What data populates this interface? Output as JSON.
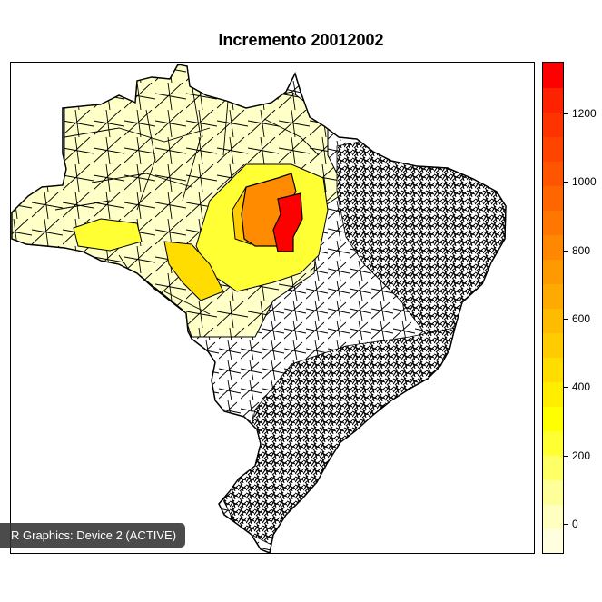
{
  "chart_data": {
    "type": "choropleth map",
    "title": "Incremento 20012002",
    "legend": {
      "ticks": [
        "0",
        "200",
        "400",
        "600",
        "800",
        "1000",
        "1200"
      ],
      "colors": [
        "#FFFFE0",
        "#FFFFC0",
        "#FFFF99",
        "#FFFF66",
        "#FFFF33",
        "#FFFF00",
        "#FFEE00",
        "#FFDD00",
        "#FFCC00",
        "#FFBB00",
        "#FFAA00",
        "#FF9900",
        "#FF8800",
        "#FF7700",
        "#FF6600",
        "#FF5500",
        "#FF4400",
        "#FF3300",
        "#FF2200",
        "#FF0000"
      ],
      "placement": "right"
    },
    "region_colors": {
      "no_data": "#FFFFFF",
      "low": "#FFFFC8",
      "moderate": "#FFFF33",
      "high": "#FFD700",
      "very_high": "#FF8C00",
      "max": "#FF0000"
    }
  },
  "status": {
    "label": "R Graphics: Device 2 (ACTIVE)"
  }
}
